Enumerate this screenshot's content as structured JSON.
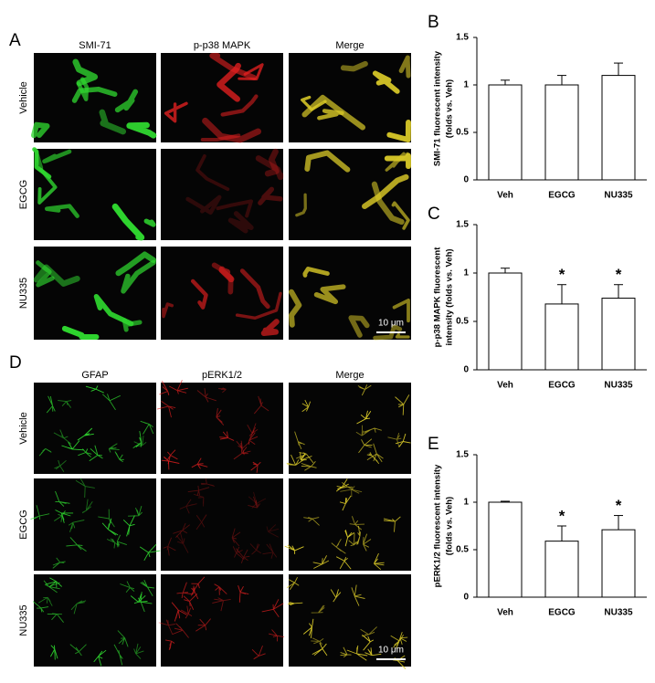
{
  "panels": [
    {
      "label": "A",
      "columns": [
        "SMI-71",
        "p-p38 MAPK",
        "Merge"
      ],
      "rows": [
        "Vehicle",
        "EGCG",
        "NU335"
      ],
      "scale_bar": "10 μm"
    },
    {
      "label": "D",
      "columns": [
        "GFAP",
        "pERK1/2",
        "Merge"
      ],
      "rows": [
        "Vehicle",
        "EGCG",
        "NU335"
      ],
      "scale_bar": "10 μm"
    }
  ],
  "chart_data": [
    {
      "type": "bar",
      "panel_label": "B",
      "ylabel": [
        "SMI-71 fluorescent intensity",
        "(folds vs. Veh)"
      ],
      "categories": [
        "Veh",
        "EGCG",
        "NU335"
      ],
      "values": [
        1,
        1,
        1.1
      ],
      "errors": [
        0.05,
        0.1,
        0.13
      ],
      "significance": [
        null,
        null,
        null
      ],
      "color": "#ffffff",
      "ylim": [
        0,
        1.5
      ],
      "yticks": [
        0,
        0.5,
        1,
        1.5
      ]
    },
    {
      "type": "bar",
      "panel_label": "C",
      "ylabel": [
        "p-p38 MAPK fluorescent",
        "intensity (folds vs. Veh)"
      ],
      "categories": [
        "Veh",
        "EGCG",
        "NU335"
      ],
      "values": [
        1,
        0.68,
        0.74
      ],
      "errors": [
        0.05,
        0.2,
        0.14
      ],
      "significance": [
        null,
        "*",
        "*"
      ],
      "color": "#ffffff",
      "ylim": [
        0,
        1.5
      ],
      "yticks": [
        0,
        0.5,
        1,
        1.5
      ]
    },
    {
      "type": "bar",
      "panel_label": "E",
      "ylabel": [
        "pERK1/2 fluorescent intensity",
        "(folds vs. Veh)"
      ],
      "categories": [
        "Veh",
        "EGCG",
        "NU335"
      ],
      "values": [
        1,
        0.59,
        0.71
      ],
      "errors": [
        0.01,
        0.16,
        0.15
      ],
      "significance": [
        null,
        "*",
        "*"
      ],
      "color": "#ffffff",
      "ylim": [
        0,
        1.5
      ],
      "yticks": [
        0,
        0.5,
        1,
        1.5
      ]
    }
  ]
}
